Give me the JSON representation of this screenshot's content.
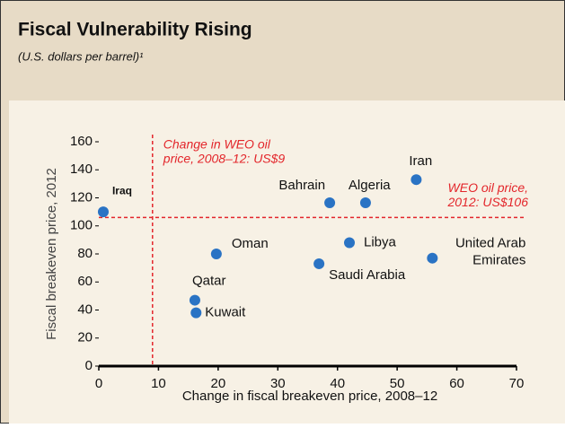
{
  "chart_data": {
    "type": "scatter",
    "title": "Fiscal Vulnerability Rising",
    "subtitle": "(U.S. dollars per barrel)¹",
    "x_label": "Change in fiscal breakeven price, 2008–12",
    "y_label": "Fiscal breakeven price, 2012",
    "categories": [
      "Iraq",
      "Oman",
      "Qatar",
      "Kuwait",
      "Bahrain",
      "Algeria",
      "Iran",
      "Libya",
      "Saudi Arabia",
      "United Arab\nEmirates"
    ],
    "x": [
      0.75,
      19.7,
      16.1,
      16.3,
      38.7,
      44.7,
      53.2,
      42,
      36.9,
      55.9
    ],
    "values": [
      110,
      80,
      47,
      38,
      116.5,
      116.5,
      133,
      88,
      73,
      77
    ],
    "color": "#2a73c4",
    "xlim": [
      0,
      70
    ],
    "xticks": [
      0,
      10,
      20,
      30,
      40,
      50,
      60,
      70
    ],
    "ylim": [
      0,
      160
    ],
    "yticks": [
      0,
      20,
      40,
      60,
      80,
      100,
      120,
      140,
      160
    ],
    "ref_lines": [
      {
        "axis": "x",
        "value": 9,
        "label": [
          "Change in WEO oil",
          "price, 2008–12: US$9"
        ],
        "color": "#e3262b"
      },
      {
        "axis": "y",
        "value": 106,
        "label": [
          "WEO oil price,",
          "2012: US$106"
        ],
        "color": "#e3262b"
      }
    ]
  }
}
